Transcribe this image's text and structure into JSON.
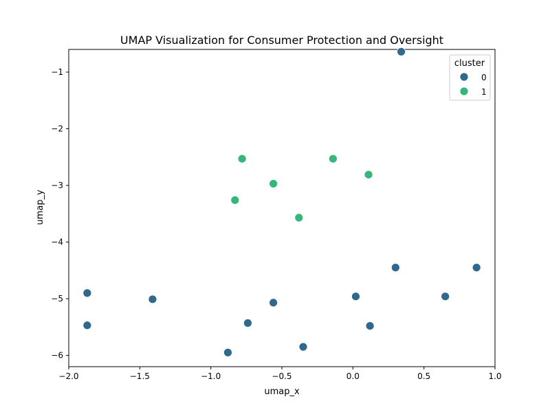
{
  "chart_data": {
    "type": "scatter",
    "title": "UMAP Visualization for Consumer Protection and Oversight",
    "xlabel": "umap_x",
    "ylabel": "umap_y",
    "xlim": [
      -2.0,
      1.0
    ],
    "ylim": [
      -6.2,
      -0.6
    ],
    "xticks": [
      -2.0,
      -1.5,
      -1.0,
      -0.5,
      0.0,
      0.5,
      1.0
    ],
    "xtick_labels": [
      "−2.0",
      "−1.5",
      "−1.0",
      "−0.5",
      "0.0",
      "0.5",
      "1.0"
    ],
    "yticks": [
      -6,
      -5,
      -4,
      -3,
      -2,
      -1
    ],
    "ytick_labels": [
      "−6",
      "−5",
      "−4",
      "−3",
      "−2",
      "−1"
    ],
    "grid": false,
    "legend": {
      "title": "cluster",
      "placement": "top-right"
    },
    "series": [
      {
        "name": "0",
        "color": "#31688e",
        "points": [
          {
            "x": 0.34,
            "y": -0.64
          },
          {
            "x": 0.3,
            "y": -4.45
          },
          {
            "x": 0.87,
            "y": -4.45
          },
          {
            "x": -1.87,
            "y": -4.9
          },
          {
            "x": -1.41,
            "y": -5.01
          },
          {
            "x": 0.02,
            "y": -4.96
          },
          {
            "x": 0.65,
            "y": -4.96
          },
          {
            "x": -0.56,
            "y": -5.07
          },
          {
            "x": -1.87,
            "y": -5.47
          },
          {
            "x": -0.74,
            "y": -5.43
          },
          {
            "x": 0.12,
            "y": -5.48
          },
          {
            "x": -0.35,
            "y": -5.85
          },
          {
            "x": -0.88,
            "y": -5.95
          }
        ]
      },
      {
        "name": "1",
        "color": "#35b779",
        "points": [
          {
            "x": -0.78,
            "y": -2.53
          },
          {
            "x": -0.14,
            "y": -2.53
          },
          {
            "x": 0.11,
            "y": -2.81
          },
          {
            "x": -0.56,
            "y": -2.97
          },
          {
            "x": -0.83,
            "y": -3.26
          },
          {
            "x": -0.38,
            "y": -3.57
          }
        ]
      }
    ]
  }
}
